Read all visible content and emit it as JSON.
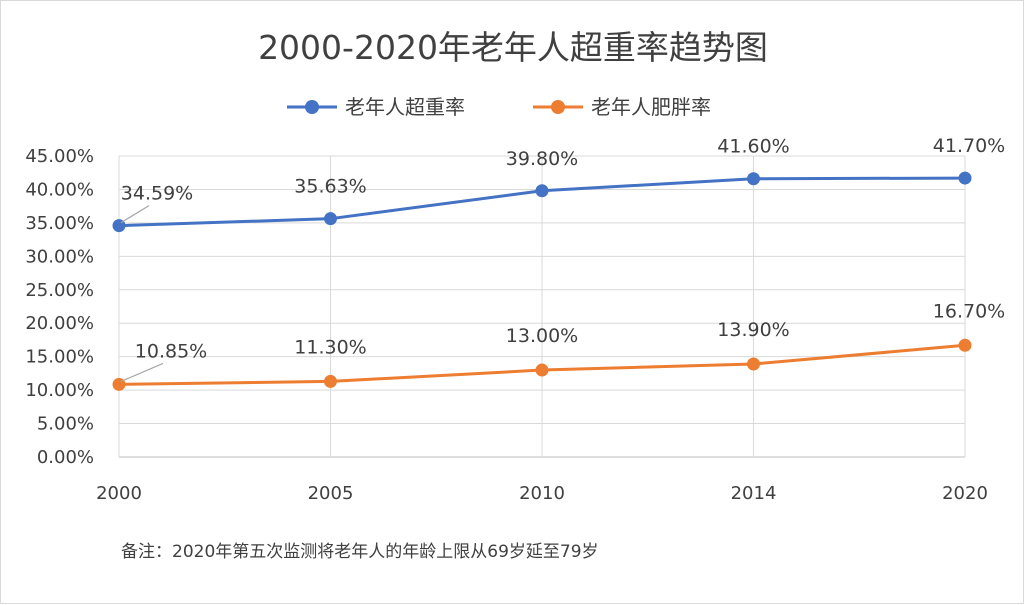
{
  "chart_data": {
    "type": "line",
    "title": "2000-2020年老年人超重率趋势图",
    "categories": [
      "2000",
      "2005",
      "2010",
      "2014",
      "2020"
    ],
    "ylim": [
      0,
      45
    ],
    "yticks": [
      "0.00%",
      "5.00%",
      "10.00%",
      "15.00%",
      "20.00%",
      "25.00%",
      "30.00%",
      "35.00%",
      "40.00%",
      "45.00%"
    ],
    "grid": true,
    "legend_position": "top-center",
    "series": [
      {
        "name": "老年人超重率",
        "color": "#4472c4",
        "values": [
          34.59,
          35.63,
          39.8,
          41.6,
          41.7
        ],
        "labels": [
          "34.59%",
          "35.63%",
          "39.80%",
          "41.60%",
          "41.70%"
        ]
      },
      {
        "name": "老年人肥胖率",
        "color": "#ed7d31",
        "values": [
          10.85,
          11.3,
          13.0,
          13.9,
          16.7
        ],
        "labels": [
          "10.85%",
          "11.30%",
          "13.00%",
          "13.90%",
          "16.70%"
        ]
      }
    ],
    "note": "备注：2020年第五次监测将老年人的年龄上限从69岁延至79岁"
  }
}
